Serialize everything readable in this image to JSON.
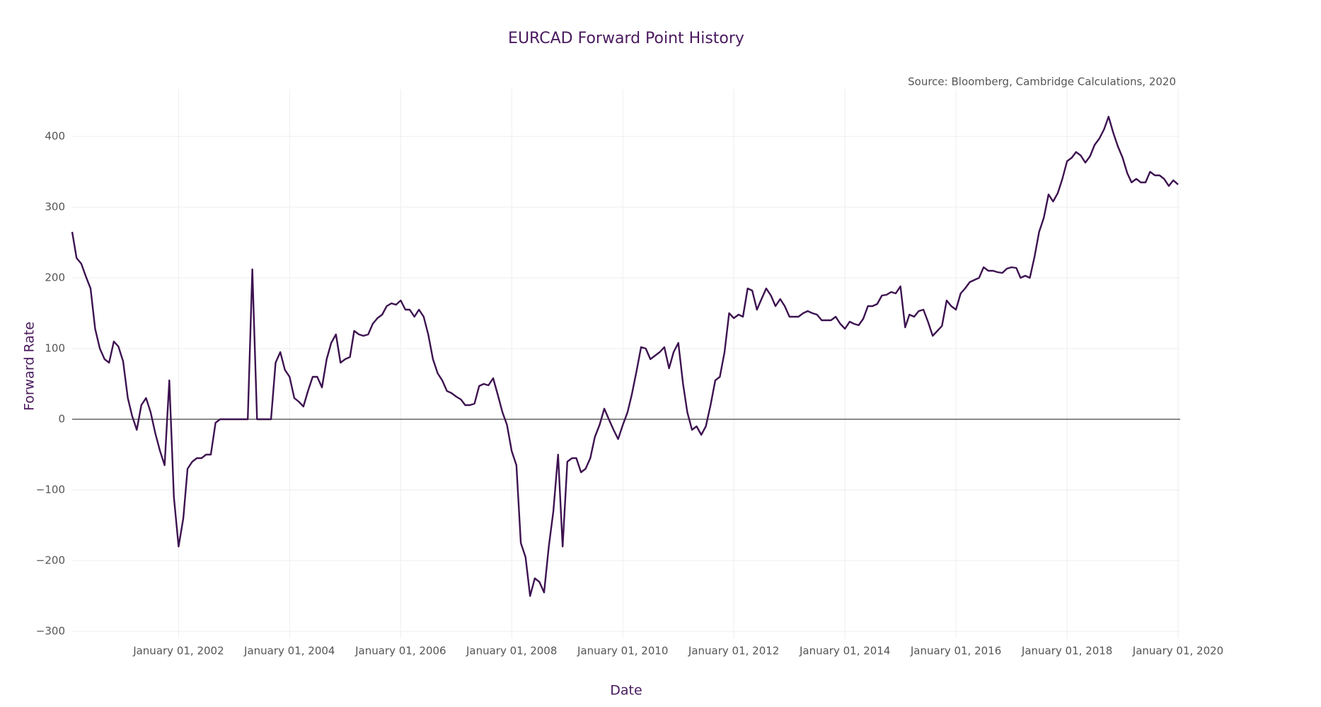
{
  "chart_data": {
    "type": "line",
    "title": "EURCAD Forward Point History",
    "annotation": "Source: Bloomberg, Cambridge Calculations, 2020",
    "xlabel": "Date",
    "ylabel": "Forward Rate",
    "grid": true,
    "zeroline": true,
    "xlim": [
      "2000-02-01",
      "2020-01-15"
    ],
    "ylim": [
      -310,
      467
    ],
    "xticks": [
      {
        "value": "2002-01-01",
        "label": "January 01, 2002"
      },
      {
        "value": "2004-01-01",
        "label": "January 01, 2004"
      },
      {
        "value": "2006-01-01",
        "label": "January 01, 2006"
      },
      {
        "value": "2008-01-01",
        "label": "January 01, 2008"
      },
      {
        "value": "2010-01-01",
        "label": "January 01, 2010"
      },
      {
        "value": "2012-01-01",
        "label": "January 01, 2012"
      },
      {
        "value": "2014-01-01",
        "label": "January 01, 2014"
      },
      {
        "value": "2016-01-01",
        "label": "January 01, 2016"
      },
      {
        "value": "2018-01-01",
        "label": "January 01, 2018"
      },
      {
        "value": "2020-01-01",
        "label": "January 01, 2020"
      }
    ],
    "yticks": [
      {
        "value": -300,
        "label": "−300"
      },
      {
        "value": -200,
        "label": "−200"
      },
      {
        "value": -100,
        "label": "−100"
      },
      0,
      100,
      200,
      300,
      400
    ],
    "x": [
      "2000-02-01",
      "2000-03-01",
      "2000-04-01",
      "2000-05-01",
      "2000-06-01",
      "2000-07-01",
      "2000-08-01",
      "2000-09-01",
      "2000-10-01",
      "2000-11-01",
      "2000-12-01",
      "2001-01-01",
      "2001-02-01",
      "2001-03-01",
      "2001-04-01",
      "2001-05-01",
      "2001-06-01",
      "2001-07-01",
      "2001-08-01",
      "2001-09-01",
      "2001-10-01",
      "2001-11-01",
      "2001-12-01",
      "2002-01-01",
      "2002-02-01",
      "2002-03-01",
      "2002-04-01",
      "2002-05-01",
      "2002-06-01",
      "2002-07-01",
      "2002-08-01",
      "2002-09-01",
      "2002-10-01",
      "2002-11-01",
      "2002-12-01",
      "2003-01-01",
      "2003-02-01",
      "2003-03-01",
      "2003-04-01",
      "2003-05-01",
      "2003-06-01",
      "2003-07-01",
      "2003-08-01",
      "2003-09-01",
      "2003-10-01",
      "2003-11-01",
      "2003-12-01",
      "2004-01-01",
      "2004-02-01",
      "2004-03-01",
      "2004-04-01",
      "2004-05-01",
      "2004-06-01",
      "2004-07-01",
      "2004-08-01",
      "2004-09-01",
      "2004-10-01",
      "2004-11-01",
      "2004-12-01",
      "2005-01-01",
      "2005-02-01",
      "2005-03-01",
      "2005-04-01",
      "2005-05-01",
      "2005-06-01",
      "2005-07-01",
      "2005-08-01",
      "2005-09-01",
      "2005-10-01",
      "2005-11-01",
      "2005-12-01",
      "2006-01-01",
      "2006-02-01",
      "2006-03-01",
      "2006-04-01",
      "2006-05-01",
      "2006-06-01",
      "2006-07-01",
      "2006-08-01",
      "2006-09-01",
      "2006-10-01",
      "2006-11-01",
      "2006-12-01",
      "2007-01-01",
      "2007-02-01",
      "2007-03-01",
      "2007-04-01",
      "2007-05-01",
      "2007-06-01",
      "2007-07-01",
      "2007-08-01",
      "2007-09-01",
      "2007-10-01",
      "2007-11-01",
      "2007-12-01",
      "2008-01-01",
      "2008-02-01",
      "2008-03-01",
      "2008-04-01",
      "2008-05-01",
      "2008-06-01",
      "2008-07-01",
      "2008-08-01",
      "2008-09-01",
      "2008-10-01",
      "2008-11-01",
      "2008-12-01",
      "2009-01-01",
      "2009-02-01",
      "2009-03-01",
      "2009-04-01",
      "2009-05-01",
      "2009-06-01",
      "2009-07-01",
      "2009-08-01",
      "2009-09-01",
      "2009-10-01",
      "2009-11-01",
      "2009-12-01",
      "2010-01-01",
      "2010-02-01",
      "2010-03-01",
      "2010-04-01",
      "2010-05-01",
      "2010-06-01",
      "2010-07-01",
      "2010-08-01",
      "2010-09-01",
      "2010-10-01",
      "2010-11-01",
      "2010-12-01",
      "2011-01-01",
      "2011-02-01",
      "2011-03-01",
      "2011-04-01",
      "2011-05-01",
      "2011-06-01",
      "2011-07-01",
      "2011-08-01",
      "2011-09-01",
      "2011-10-01",
      "2011-11-01",
      "2011-12-01",
      "2012-01-01",
      "2012-02-01",
      "2012-03-01",
      "2012-04-01",
      "2012-05-01",
      "2012-06-01",
      "2012-07-01",
      "2012-08-01",
      "2012-09-01",
      "2012-10-01",
      "2012-11-01",
      "2012-12-01",
      "2013-01-01",
      "2013-02-01",
      "2013-03-01",
      "2013-04-01",
      "2013-05-01",
      "2013-06-01",
      "2013-07-01",
      "2013-08-01",
      "2013-09-01",
      "2013-10-01",
      "2013-11-01",
      "2013-12-01",
      "2014-01-01",
      "2014-02-01",
      "2014-03-01",
      "2014-04-01",
      "2014-05-01",
      "2014-06-01",
      "2014-07-01",
      "2014-08-01",
      "2014-09-01",
      "2014-10-01",
      "2014-11-01",
      "2014-12-01",
      "2015-01-01",
      "2015-02-01",
      "2015-03-01",
      "2015-04-01",
      "2015-05-01",
      "2015-06-01",
      "2015-07-01",
      "2015-08-01",
      "2015-09-01",
      "2015-10-01",
      "2015-11-01",
      "2015-12-01",
      "2016-01-01",
      "2016-02-01",
      "2016-03-01",
      "2016-04-01",
      "2016-05-01",
      "2016-06-01",
      "2016-07-01",
      "2016-08-01",
      "2016-09-01",
      "2016-10-01",
      "2016-11-01",
      "2016-12-01",
      "2017-01-01",
      "2017-02-01",
      "2017-03-01",
      "2017-04-01",
      "2017-05-01",
      "2017-06-01",
      "2017-07-01",
      "2017-08-01",
      "2017-09-01",
      "2017-10-01",
      "2017-11-01",
      "2017-12-01",
      "2018-01-01",
      "2018-02-01",
      "2018-03-01",
      "2018-04-01",
      "2018-05-01",
      "2018-06-01",
      "2018-07-01",
      "2018-08-01",
      "2018-09-01",
      "2018-10-01",
      "2018-11-01",
      "2018-12-01",
      "2019-01-01",
      "2019-02-01",
      "2019-03-01",
      "2019-04-01",
      "2019-05-01",
      "2019-06-01",
      "2019-07-01",
      "2019-08-01",
      "2019-09-01",
      "2019-10-01",
      "2019-11-01",
      "2019-12-01",
      "2020-01-01"
    ],
    "series": [
      {
        "color": "#3d1250",
        "values": [
          265,
          228,
          220,
          202,
          185,
          128,
          100,
          85,
          80,
          110,
          103,
          82,
          30,
          5,
          -15,
          20,
          30,
          10,
          -20,
          -45,
          -65,
          55,
          -110,
          -180,
          -140,
          -70,
          -60,
          -55,
          -55,
          -50,
          -50,
          -5,
          0,
          0,
          0,
          0,
          0,
          0,
          0,
          212,
          0,
          0,
          0,
          0,
          80,
          95,
          70,
          60,
          30,
          25,
          18,
          40,
          60,
          60,
          45,
          85,
          108,
          120,
          80,
          85,
          88,
          125,
          120,
          118,
          120,
          135,
          143,
          148,
          160,
          164,
          162,
          168,
          155,
          155,
          145,
          155,
          145,
          120,
          85,
          65,
          55,
          40,
          37,
          32,
          28,
          20,
          20,
          22,
          47,
          50,
          48,
          58,
          35,
          10,
          -8,
          -45,
          -65,
          -175,
          -195,
          -250,
          -225,
          -230,
          -245,
          -180,
          -130,
          -50,
          -180,
          -60,
          -55,
          -55,
          -75,
          -70,
          -55,
          -25,
          -8,
          15,
          0,
          -15,
          -28,
          -8,
          10,
          35,
          68,
          102,
          100,
          85,
          90,
          95,
          102,
          72,
          95,
          108,
          50,
          10,
          -15,
          -10,
          -22,
          -10,
          20,
          55,
          60,
          95,
          150,
          143,
          148,
          145,
          185,
          182,
          155,
          170,
          185,
          175,
          160,
          170,
          160,
          145,
          145,
          145,
          150,
          153,
          150,
          148,
          140,
          140,
          140,
          145,
          135,
          128,
          138,
          135,
          133,
          142,
          160,
          160,
          163,
          175,
          176,
          180,
          178,
          188,
          130,
          148,
          145,
          153,
          155,
          138,
          118,
          125,
          132,
          168,
          160,
          155,
          178,
          185,
          194,
          197,
          200,
          215,
          210,
          210,
          208,
          207,
          213,
          215,
          214,
          200,
          203,
          200,
          230,
          265,
          285,
          318,
          308,
          320,
          340,
          365,
          370,
          378,
          373,
          363,
          372,
          388,
          397,
          410,
          428,
          405,
          386,
          370,
          348,
          335,
          340,
          335,
          335,
          350,
          345,
          345,
          340,
          330,
          338,
          332
        ]
      }
    ]
  }
}
